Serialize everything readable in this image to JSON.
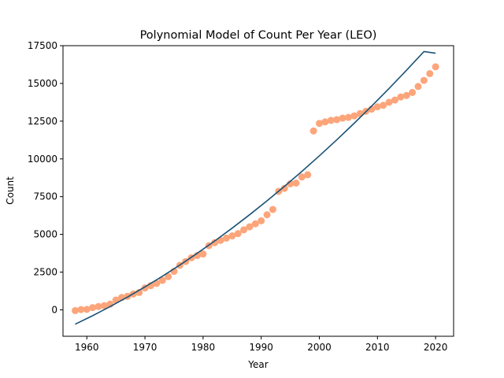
{
  "chart_data": {
    "type": "scatter",
    "title": "Polynomial Model of Count Per Year (LEO)",
    "xlabel": "Year",
    "ylabel": "Count",
    "xlim": [
      1955.9,
      2023.1
    ],
    "ylim": [
      -1750,
      17500
    ],
    "x_ticks": [
      1960,
      1970,
      1980,
      1990,
      2000,
      2010,
      2020
    ],
    "y_ticks": [
      0,
      2500,
      5000,
      7500,
      10000,
      12500,
      15000,
      17500
    ],
    "grid": false,
    "series": [
      {
        "kind": "scatter",
        "color": "#fca57b",
        "x": [
          1958,
          1959,
          1960,
          1961,
          1962,
          1963,
          1964,
          1965,
          1966,
          1967,
          1968,
          1969,
          1970,
          1971,
          1972,
          1973,
          1974,
          1975,
          1976,
          1977,
          1978,
          1979,
          1980,
          1981,
          1982,
          1983,
          1984,
          1985,
          1986,
          1987,
          1988,
          1989,
          1990,
          1991,
          1992,
          1993,
          1994,
          1995,
          1996,
          1997,
          1998,
          1999,
          2000,
          2001,
          2002,
          2003,
          2004,
          2005,
          2006,
          2007,
          2008,
          2009,
          2010,
          2011,
          2012,
          2013,
          2014,
          2015,
          2016,
          2017,
          2018,
          2019,
          2020
        ],
        "y": [
          -50,
          20,
          30,
          150,
          220,
          280,
          380,
          650,
          820,
          900,
          1050,
          1150,
          1450,
          1600,
          1750,
          1950,
          2200,
          2550,
          2950,
          3200,
          3450,
          3600,
          3700,
          4250,
          4450,
          4600,
          4750,
          4900,
          5050,
          5300,
          5500,
          5700,
          5900,
          6300,
          6650,
          7850,
          8050,
          8350,
          8400,
          8800,
          8950,
          11850,
          12350,
          12450,
          12550,
          12600,
          12700,
          12750,
          12850,
          13000,
          13150,
          13300,
          13450,
          13550,
          13750,
          13900,
          14100,
          14200,
          14400,
          14800,
          15200,
          15650,
          16100
        ]
      },
      {
        "kind": "line",
        "color": "#1a5276",
        "x": [
          1958,
          1961,
          1964,
          1967,
          1970,
          1973,
          1976,
          1979,
          1982,
          1985,
          1988,
          1991,
          1994,
          1997,
          2000,
          2003,
          2006,
          2009,
          2012,
          2015,
          2018,
          2020
        ],
        "y": [
          -950,
          -387,
          214,
          850,
          1520,
          2227,
          2970,
          3750,
          4564,
          5414,
          6300,
          7222,
          8180,
          9173,
          10200,
          11263,
          12362,
          13497,
          14666,
          15872,
          17113,
          17000
        ]
      }
    ]
  }
}
